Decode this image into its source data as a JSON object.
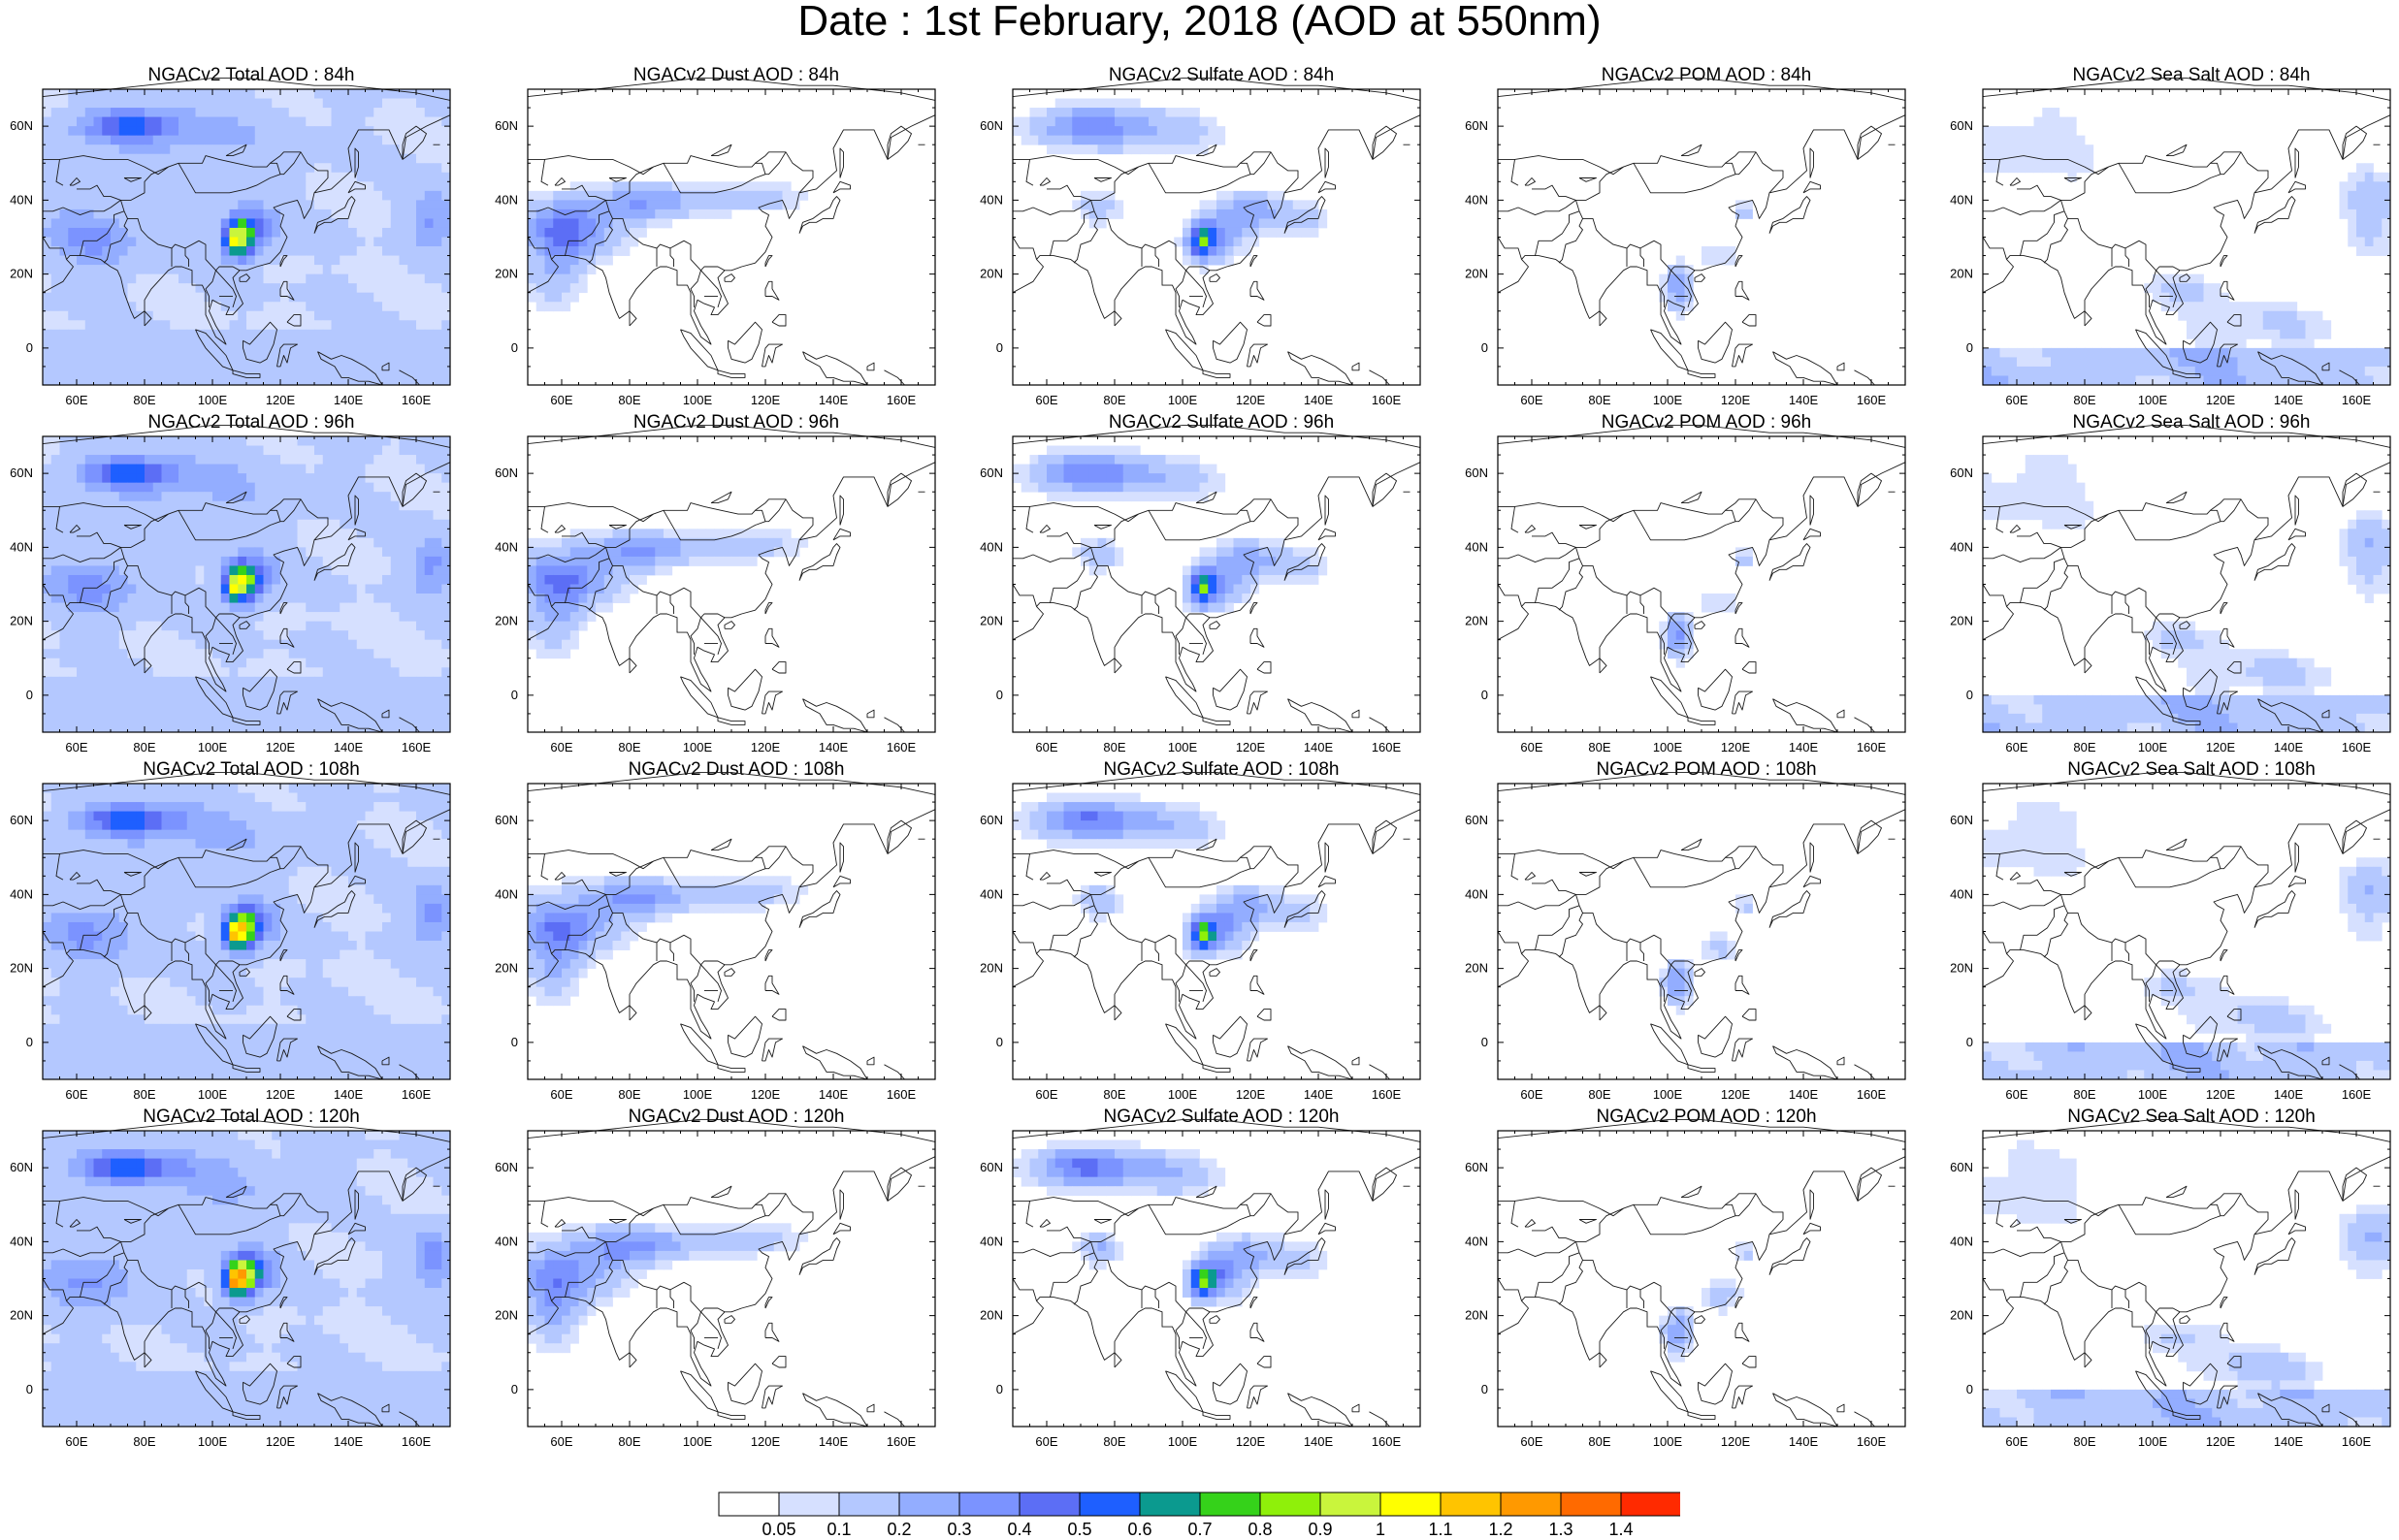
{
  "title": "Date : 1st February, 2018 (AOD at 550nm)",
  "axes": {
    "x_ticks": [
      "60E",
      "80E",
      "100E",
      "120E",
      "140E",
      "160E"
    ],
    "x_tick_values": [
      60,
      80,
      100,
      120,
      140,
      160
    ],
    "y_ticks": [
      "60N",
      "40N",
      "20N",
      "0"
    ],
    "y_tick_values": [
      60,
      40,
      20,
      0
    ],
    "lon_range": [
      50,
      170
    ],
    "lat_range": [
      -10,
      70
    ]
  },
  "colorbar": {
    "labels": [
      "0.05",
      "0.1",
      "0.2",
      "0.3",
      "0.4",
      "0.5",
      "0.6",
      "0.7",
      "0.8",
      "0.9",
      "1",
      "1.1",
      "1.2",
      "1.3",
      "1.4"
    ],
    "colors": [
      "#ffffff",
      "#d6e0ff",
      "#b4c8ff",
      "#93adff",
      "#7b93ff",
      "#5c6ef5",
      "#1e5fff",
      "#0b9a8f",
      "#35d21a",
      "#8ff00a",
      "#c9f53c",
      "#ffff00",
      "#ffc400",
      "#ff9900",
      "#ff6a00",
      "#ff2a00"
    ]
  },
  "panels": [
    {
      "title": "NGACv2 Total AOD : 84h",
      "species": "total"
    },
    {
      "title": "NGACv2 Dust AOD : 84h",
      "species": "dust"
    },
    {
      "title": "NGACv2 Sulfate AOD : 84h",
      "species": "sulfate"
    },
    {
      "title": "NGACv2 POM AOD : 84h",
      "species": "pom"
    },
    {
      "title": "NGACv2 Sea Salt AOD : 84h",
      "species": "seasalt"
    },
    {
      "title": "NGACv2 Total AOD : 96h",
      "species": "total"
    },
    {
      "title": "NGACv2 Dust AOD : 96h",
      "species": "dust"
    },
    {
      "title": "NGACv2 Sulfate AOD : 96h",
      "species": "sulfate"
    },
    {
      "title": "NGACv2 POM AOD : 96h",
      "species": "pom"
    },
    {
      "title": "NGACv2 Sea Salt AOD : 96h",
      "species": "seasalt"
    },
    {
      "title": "NGACv2 Total AOD : 108h",
      "species": "total"
    },
    {
      "title": "NGACv2 Dust AOD : 108h",
      "species": "dust"
    },
    {
      "title": "NGACv2 Sulfate AOD : 108h",
      "species": "sulfate"
    },
    {
      "title": "NGACv2 POM AOD : 108h",
      "species": "pom"
    },
    {
      "title": "NGACv2 Sea Salt AOD : 108h",
      "species": "seasalt"
    },
    {
      "title": "NGACv2 Total AOD : 120h",
      "species": "total"
    },
    {
      "title": "NGACv2 Dust AOD : 120h",
      "species": "dust"
    },
    {
      "title": "NGACv2 Sulfate AOD : 120h",
      "species": "sulfate"
    },
    {
      "title": "NGACv2 POM AOD : 120h",
      "species": "pom"
    },
    {
      "title": "NGACv2 Sea Salt  AOD : 120h",
      "species": "seasalt"
    }
  ]
}
